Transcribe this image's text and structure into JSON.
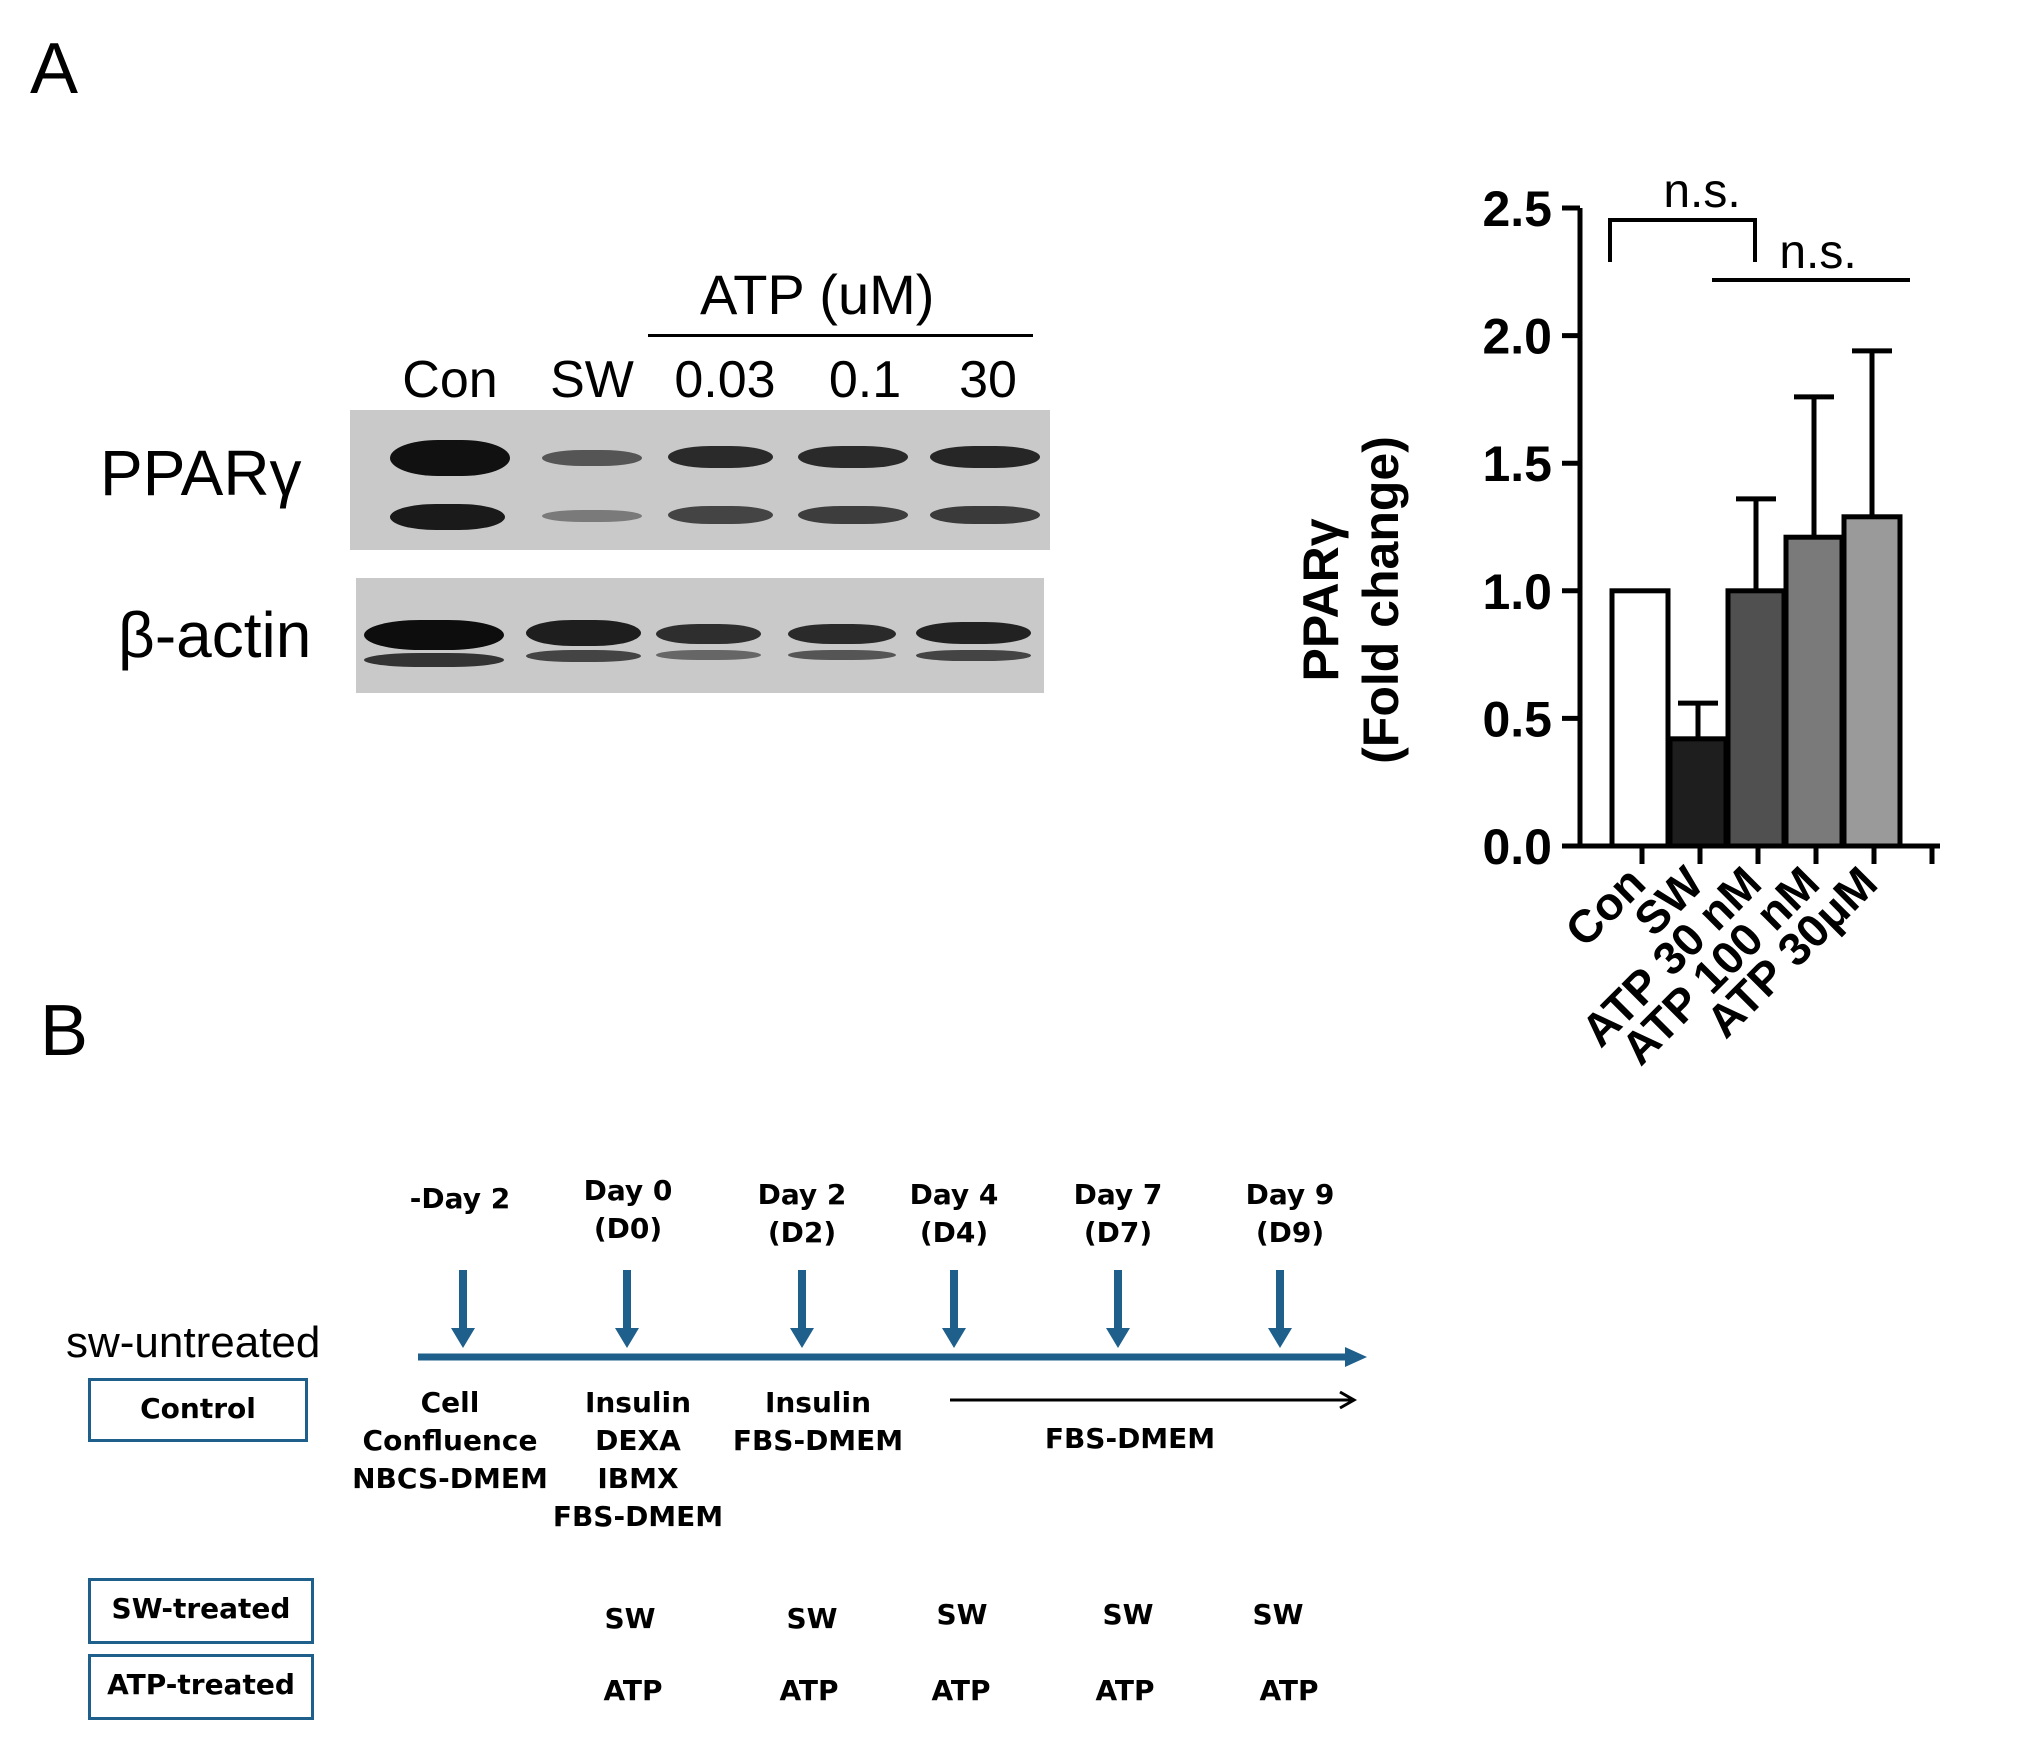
{
  "panel_a": {
    "letter": "A",
    "blot": {
      "atp_header": "ATP (uM)",
      "lanes": [
        "Con",
        "SW",
        "0.03",
        "0.1",
        "30"
      ],
      "rows": [
        "PPARγ",
        "β-actin"
      ]
    },
    "significance": [
      "n.s.",
      "n.s."
    ]
  },
  "panel_b": {
    "letter": "B",
    "group_label": "sw-untreated",
    "timepoints": [
      {
        "label": "-Day 2",
        "sub": ""
      },
      {
        "label": "Day 0",
        "sub": "(D0)"
      },
      {
        "label": "Day 2",
        "sub": "(D2)"
      },
      {
        "label": "Day 4",
        "sub": "(D4)"
      },
      {
        "label": "Day 7",
        "sub": "(D7)"
      },
      {
        "label": "Day 9",
        "sub": "(D9)"
      }
    ],
    "media": [
      [
        "Cell",
        "Confluence",
        "NBCS-DMEM"
      ],
      [
        "Insulin",
        "DEXA",
        "IBMX",
        "FBS-DMEM"
      ],
      [
        "Insulin",
        "FBS-DMEM"
      ],
      [
        "FBS-DMEM"
      ]
    ],
    "boxes": [
      "Control",
      "SW-treated",
      "ATP-treated"
    ],
    "sw_marks": [
      "SW",
      "SW",
      "SW",
      "SW",
      "SW"
    ],
    "atp_marks": [
      "ATP",
      "ATP",
      "ATP",
      "ATP",
      "ATP"
    ],
    "colors": {
      "timeline": "#1f5f8b"
    }
  },
  "chart_data": {
    "type": "bar",
    "categories": [
      "Con",
      "SW",
      "ATP 30 nM",
      "ATP 100 nM",
      "ATP 30μM"
    ],
    "values": [
      1.0,
      0.42,
      1.0,
      1.21,
      1.29
    ],
    "errors": [
      0,
      0.14,
      0.36,
      0.55,
      0.65
    ],
    "colors": [
      "#ffffff",
      "#1e1e1e",
      "#505050",
      "#7a7a7a",
      "#9a9a9a"
    ],
    "ylabel": "PPARγ",
    "ylabel2": "(Fold change)",
    "ylim": [
      0,
      2.5
    ],
    "yticks": [
      "0.0",
      "0.5",
      "1.0",
      "1.5",
      "2.0",
      "2.5"
    ]
  }
}
